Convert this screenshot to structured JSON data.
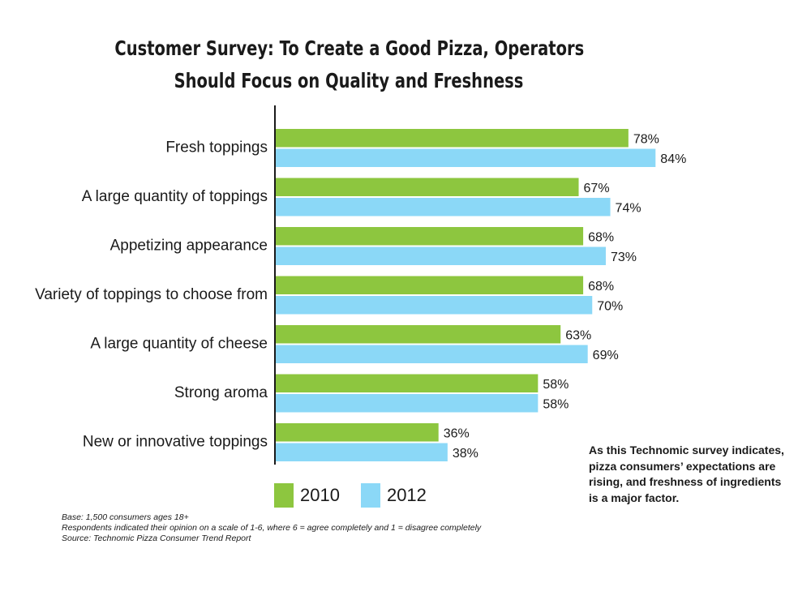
{
  "chart_data": {
    "type": "bar",
    "orientation": "horizontal",
    "title_lines": [
      "Customer Survey: To Create a Good Pizza, Operators",
      "Should Focus on Quality and Freshness"
    ],
    "categories": [
      "Fresh toppings",
      "A large quantity of toppings",
      "Appetizing appearance",
      "Variety of toppings to choose from",
      "A large quantity of cheese",
      "Strong aroma",
      "New or innovative toppings"
    ],
    "series": [
      {
        "name": "2010",
        "color": "#8dc63f",
        "values": [
          78,
          67,
          68,
          68,
          63,
          58,
          36
        ],
        "labels": [
          "78%",
          "67%",
          "68%",
          "68%",
          "63%",
          "58%",
          "36%"
        ]
      },
      {
        "name": "2012",
        "color": "#8bd8f7",
        "values": [
          84,
          74,
          73,
          70,
          69,
          58,
          38
        ],
        "labels": [
          "84%",
          "74%",
          "73%",
          "70%",
          "69%",
          "58%",
          "38%"
        ]
      }
    ],
    "value_unit": "%",
    "xlim": [
      0,
      100
    ],
    "grid": false,
    "legend_position": "bottom"
  },
  "notes": [
    "Base: 1,500 consumers ages 18+",
    "Respondents indicated their opinion on a scale of 1-6, where 6 = agree completely and 1 = disagree completely",
    "Source: Technomic Pizza Consumer Trend Report"
  ],
  "callout_lines": [
    "As this Technomic survey indicates,",
    "pizza consumers’ expectations are",
    "rising, and freshness of ingredients",
    "is a major factor."
  ],
  "colors": {
    "axis": "#1a1a1a",
    "text": "#1a1a1a"
  }
}
